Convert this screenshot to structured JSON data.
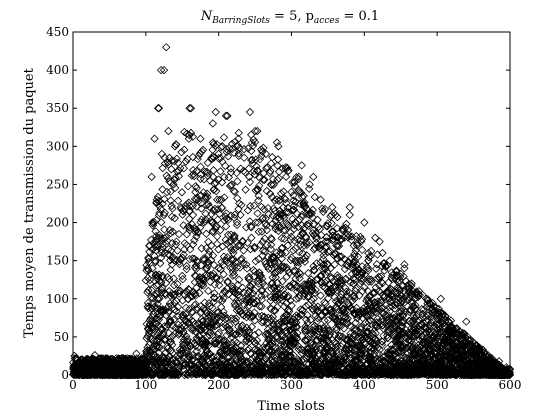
{
  "chart_data": {
    "type": "scatter",
    "title": {
      "base": "N",
      "sub1": "BarringSlots",
      "mid": " = 5, p",
      "sub2": "acces",
      "tail": " = 0.1"
    },
    "xlabel": "Time slots",
    "ylabel": "Temps moyen de transmission du paquet",
    "xlim": [
      0,
      600
    ],
    "ylim": [
      0,
      450
    ],
    "xticks": [
      0,
      100,
      200,
      300,
      400,
      500,
      600
    ],
    "yticks": [
      0,
      50,
      100,
      150,
      200,
      250,
      300,
      350,
      400,
      450
    ],
    "grid": false,
    "legend": "none",
    "marker": "open-diamond",
    "color": "#000000",
    "series": [
      {
        "values": [
          [
            2,
            25
          ],
          [
            5,
            8
          ],
          [
            8,
            3
          ],
          [
            10,
            15
          ],
          [
            12,
            20
          ],
          [
            15,
            5
          ],
          [
            18,
            10
          ],
          [
            20,
            2
          ],
          [
            22,
            12
          ],
          [
            25,
            18
          ],
          [
            28,
            6
          ],
          [
            30,
            9
          ],
          [
            32,
            4
          ],
          [
            35,
            14
          ],
          [
            38,
            7
          ],
          [
            40,
            1
          ],
          [
            42,
            11
          ],
          [
            45,
            16
          ],
          [
            48,
            3
          ],
          [
            50,
            8
          ],
          [
            52,
            20
          ],
          [
            55,
            5
          ],
          [
            58,
            12
          ],
          [
            60,
            2
          ],
          [
            62,
            9
          ],
          [
            65,
            17
          ],
          [
            68,
            6
          ],
          [
            70,
            4
          ],
          [
            72,
            13
          ],
          [
            75,
            22
          ],
          [
            78,
            7
          ],
          [
            80,
            3
          ],
          [
            82,
            10
          ],
          [
            85,
            19
          ],
          [
            88,
            5
          ],
          [
            90,
            14
          ],
          [
            92,
            8
          ],
          [
            95,
            2
          ],
          [
            97,
            11
          ],
          [
            99,
            6
          ],
          [
            30,
            26
          ],
          [
            64,
            21
          ],
          [
            87,
            28
          ],
          [
            102,
            140
          ],
          [
            103,
            90
          ],
          [
            104,
            60
          ],
          [
            105,
            170
          ],
          [
            106,
            120
          ],
          [
            107,
            30
          ],
          [
            108,
            260
          ],
          [
            109,
            200
          ],
          [
            110,
            80
          ],
          [
            111,
            45
          ],
          [
            112,
            310
          ],
          [
            113,
            150
          ],
          [
            114,
            20
          ],
          [
            115,
            230
          ],
          [
            116,
            100
          ],
          [
            117,
            350
          ],
          [
            118,
            65
          ],
          [
            119,
            180
          ],
          [
            120,
            10
          ],
          [
            121,
            400
          ],
          [
            122,
            290
          ],
          [
            123,
            130
          ],
          [
            124,
            55
          ],
          [
            125,
            210
          ],
          [
            126,
            160
          ],
          [
            127,
            85
          ],
          [
            128,
            430
          ],
          [
            129,
            240
          ],
          [
            130,
            35
          ],
          [
            131,
            320
          ],
          [
            132,
            110
          ],
          [
            133,
            190
          ],
          [
            134,
            70
          ],
          [
            135,
            270
          ],
          [
            136,
            145
          ],
          [
            137,
            15
          ],
          [
            138,
            250
          ],
          [
            139,
            95
          ],
          [
            140,
            300
          ],
          [
            142,
            175
          ],
          [
            145,
            60
          ],
          [
            148,
            220
          ],
          [
            150,
            130
          ],
          [
            152,
            40
          ],
          [
            155,
            280
          ],
          [
            158,
            100
          ],
          [
            160,
            190
          ],
          [
            162,
            350
          ],
          [
            165,
            70
          ],
          [
            168,
            240
          ],
          [
            170,
            150
          ],
          [
            172,
            25
          ],
          [
            175,
            310
          ],
          [
            178,
            120
          ],
          [
            180,
            200
          ],
          [
            182,
            60
          ],
          [
            185,
            265
          ],
          [
            188,
            90
          ],
          [
            190,
            170
          ],
          [
            192,
            330
          ],
          [
            195,
            45
          ],
          [
            198,
            230
          ],
          [
            200,
            140
          ],
          [
            202,
            15
          ],
          [
            205,
            280
          ],
          [
            208,
            110
          ],
          [
            210,
            195
          ],
          [
            212,
            340
          ],
          [
            215,
            65
          ],
          [
            218,
            250
          ],
          [
            220,
            160
          ],
          [
            222,
            30
          ],
          [
            225,
            300
          ],
          [
            228,
            125
          ],
          [
            230,
            210
          ],
          [
            232,
            80
          ],
          [
            235,
            285
          ],
          [
            238,
            145
          ],
          [
            240,
            50
          ],
          [
            242,
            260
          ],
          [
            245,
            180
          ],
          [
            248,
            95
          ],
          [
            250,
            320
          ],
          [
            252,
            20
          ],
          [
            255,
            235
          ],
          [
            258,
            130
          ],
          [
            260,
            205
          ],
          [
            262,
            70
          ],
          [
            265,
            290
          ],
          [
            268,
            155
          ],
          [
            270,
            40
          ],
          [
            272,
            250
          ],
          [
            275,
            115
          ],
          [
            278,
            195
          ],
          [
            280,
            305
          ],
          [
            282,
            60
          ],
          [
            285,
            230
          ],
          [
            288,
            140
          ],
          [
            290,
            90
          ],
          [
            292,
            270
          ],
          [
            295,
            170
          ],
          [
            298,
            25
          ],
          [
            300,
            240
          ],
          [
            302,
            120
          ],
          [
            305,
            200
          ],
          [
            308,
            55
          ],
          [
            310,
            260
          ],
          [
            312,
            150
          ],
          [
            315,
            85
          ],
          [
            318,
            220
          ],
          [
            320,
            180
          ],
          [
            322,
            30
          ],
          [
            325,
            250
          ],
          [
            328,
            110
          ],
          [
            330,
            190
          ],
          [
            335,
            70
          ],
          [
            340,
            230
          ],
          [
            345,
            140
          ],
          [
            350,
            45
          ],
          [
            355,
            210
          ],
          [
            360,
            160
          ],
          [
            365,
            95
          ],
          [
            370,
            190
          ],
          [
            375,
            20
          ],
          [
            380,
            220
          ],
          [
            385,
            120
          ],
          [
            390,
            170
          ],
          [
            395,
            60
          ],
          [
            400,
            200
          ],
          [
            405,
            140
          ],
          [
            410,
            35
          ],
          [
            415,
            180
          ],
          [
            420,
            110
          ],
          [
            425,
            160
          ],
          [
            430,
            75
          ],
          [
            435,
            150
          ],
          [
            440,
            25
          ],
          [
            445,
            130
          ],
          [
            450,
            95
          ],
          [
            455,
            140
          ],
          [
            460,
            55
          ],
          [
            465,
            120
          ],
          [
            470,
            15
          ],
          [
            475,
            110
          ],
          [
            480,
            80
          ],
          [
            485,
            100
          ],
          [
            490,
            40
          ],
          [
            495,
            90
          ],
          [
            500,
            60
          ],
          [
            505,
            75
          ],
          [
            510,
            30
          ],
          [
            515,
            70
          ],
          [
            520,
            50
          ],
          [
            525,
            60
          ],
          [
            530,
            20
          ],
          [
            535,
            55
          ],
          [
            540,
            40
          ],
          [
            545,
            45
          ],
          [
            550,
            15
          ],
          [
            555,
            35
          ],
          [
            560,
            25
          ],
          [
            565,
            30
          ],
          [
            570,
            10
          ],
          [
            575,
            22
          ],
          [
            580,
            15
          ],
          [
            585,
            18
          ],
          [
            590,
            8
          ],
          [
            595,
            10
          ],
          [
            598,
            4
          ],
          [
            118,
            350
          ],
          [
            125,
            400
          ],
          [
            160,
            350
          ],
          [
            196,
            345
          ],
          [
            210,
            340
          ],
          [
            243,
            345
          ],
          [
            253,
            320
          ],
          [
            282,
            300
          ],
          [
            314,
            275
          ],
          [
            330,
            260
          ],
          [
            356,
            220
          ],
          [
            380,
            210
          ],
          [
            421,
            175
          ],
          [
            455,
            145
          ],
          [
            480,
            105
          ],
          [
            505,
            100
          ],
          [
            540,
            70
          ]
        ]
      }
    ],
    "density": {
      "seed": 7,
      "count": 5200
    }
  }
}
